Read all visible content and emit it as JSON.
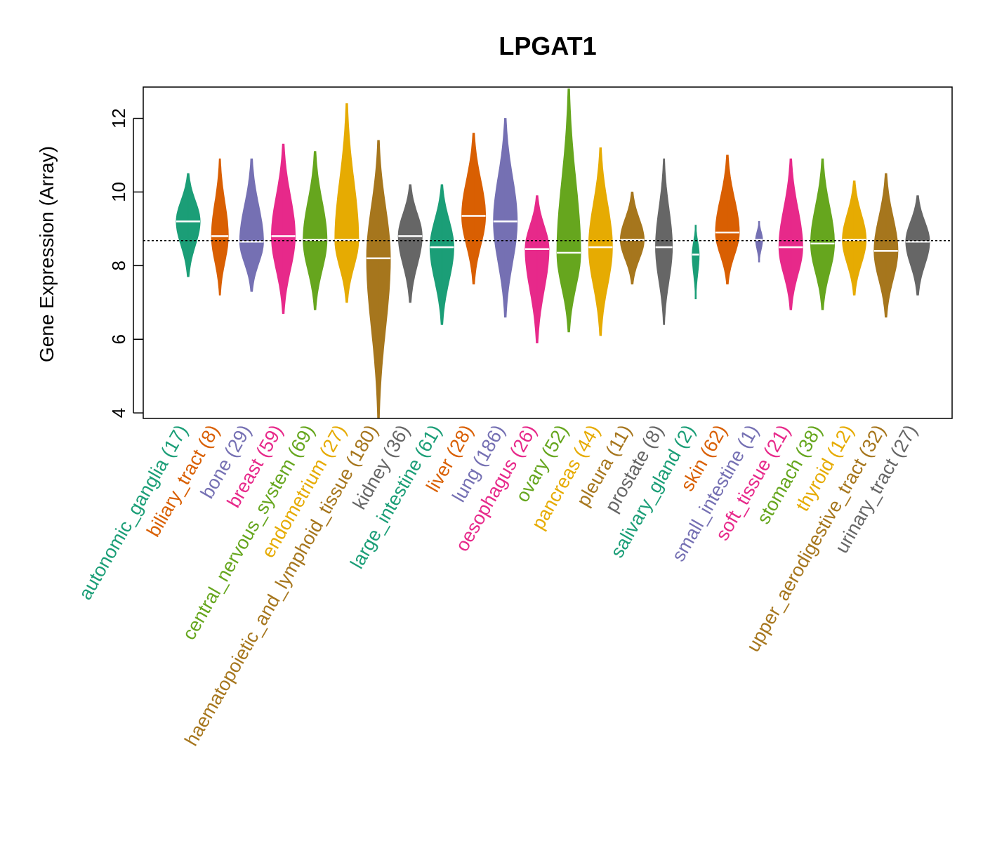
{
  "chart_data": {
    "type": "violin",
    "title": "LPGAT1",
    "ylabel": "Gene Expression (Array)",
    "xlabel": "",
    "ylim": [
      3.85,
      12.85
    ],
    "yticks": [
      4,
      6,
      8,
      10,
      12
    ],
    "reference_line": 8.68,
    "grid": false,
    "legend": "none",
    "categories": [
      {
        "name": "autonomic_ganglia",
        "n": 17,
        "color": "#1b9e77",
        "median": 9.2,
        "min": 7.7,
        "max": 10.5
      },
      {
        "name": "biliary_tract",
        "n": 8,
        "color": "#d95f02",
        "median": 8.8,
        "min": 7.2,
        "max": 10.9
      },
      {
        "name": "bone",
        "n": 29,
        "color": "#7570b3",
        "median": 8.65,
        "min": 7.3,
        "max": 10.9
      },
      {
        "name": "breast",
        "n": 59,
        "color": "#e7298a",
        "median": 8.8,
        "min": 6.7,
        "max": 11.3
      },
      {
        "name": "central_nervous_system",
        "n": 69,
        "color": "#66a61e",
        "median": 8.7,
        "min": 6.8,
        "max": 11.1
      },
      {
        "name": "endometrium",
        "n": 27,
        "color": "#e6ab02",
        "median": 8.7,
        "min": 7.0,
        "max": 12.4
      },
      {
        "name": "haematopoietic_and_lymphoid_tissue",
        "n": 180,
        "color": "#a6761d",
        "median": 8.2,
        "min": 3.85,
        "max": 11.4
      },
      {
        "name": "kidney",
        "n": 36,
        "color": "#666666",
        "median": 8.8,
        "min": 7.0,
        "max": 10.2
      },
      {
        "name": "large_intestine",
        "n": 61,
        "color": "#1b9e77",
        "median": 8.5,
        "min": 6.4,
        "max": 10.2
      },
      {
        "name": "liver",
        "n": 28,
        "color": "#d95f02",
        "median": 9.35,
        "min": 7.5,
        "max": 11.6
      },
      {
        "name": "lung",
        "n": 186,
        "color": "#7570b3",
        "median": 9.2,
        "min": 6.6,
        "max": 12.0
      },
      {
        "name": "oesophagus",
        "n": 26,
        "color": "#e7298a",
        "median": 8.45,
        "min": 5.9,
        "max": 9.9
      },
      {
        "name": "ovary",
        "n": 52,
        "color": "#66a61e",
        "median": 8.35,
        "min": 6.2,
        "max": 12.8
      },
      {
        "name": "pancreas",
        "n": 44,
        "color": "#e6ab02",
        "median": 8.5,
        "min": 6.1,
        "max": 11.2
      },
      {
        "name": "pleura",
        "n": 11,
        "color": "#a6761d",
        "median": 8.7,
        "min": 7.5,
        "max": 10.0
      },
      {
        "name": "prostate",
        "n": 8,
        "color": "#666666",
        "median": 8.5,
        "min": 6.4,
        "max": 10.9
      },
      {
        "name": "salivary_gland",
        "n": 2,
        "color": "#1b9e77",
        "median": 8.3,
        "min": 7.1,
        "max": 9.1
      },
      {
        "name": "skin",
        "n": 62,
        "color": "#d95f02",
        "median": 8.9,
        "min": 7.5,
        "max": 11.0
      },
      {
        "name": "small_intestine",
        "n": 1,
        "color": "#7570b3",
        "median": 8.7,
        "min": 8.1,
        "max": 9.2
      },
      {
        "name": "soft_tissue",
        "n": 21,
        "color": "#e7298a",
        "median": 8.5,
        "min": 6.8,
        "max": 10.9
      },
      {
        "name": "stomach",
        "n": 38,
        "color": "#66a61e",
        "median": 8.6,
        "min": 6.8,
        "max": 10.9
      },
      {
        "name": "thyroid",
        "n": 12,
        "color": "#e6ab02",
        "median": 8.7,
        "min": 7.2,
        "max": 10.3
      },
      {
        "name": "upper_aerodigestive_tract",
        "n": 32,
        "color": "#a6761d",
        "median": 8.4,
        "min": 6.6,
        "max": 10.5
      },
      {
        "name": "urinary_tract",
        "n": 27,
        "color": "#666666",
        "median": 8.65,
        "min": 7.2,
        "max": 9.9
      }
    ]
  }
}
